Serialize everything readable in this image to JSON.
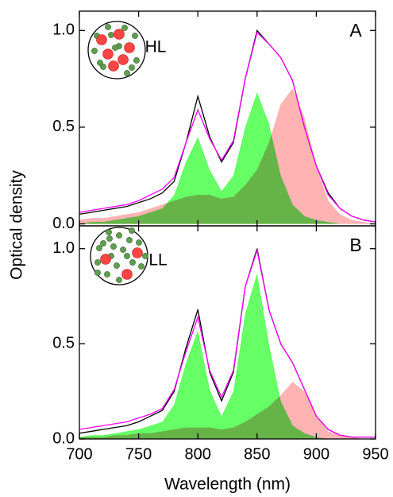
{
  "chart_data": [
    {
      "type": "line",
      "label": "A",
      "inset_label": "HL",
      "ylabel": "Optical density",
      "x": [
        700,
        710,
        720,
        730,
        740,
        750,
        760,
        770,
        780,
        790,
        800,
        810,
        820,
        830,
        840,
        850,
        860,
        870,
        880,
        890,
        900,
        910,
        920,
        930,
        940,
        950
      ],
      "xlim": [
        700,
        950
      ],
      "xticks": [
        700,
        750,
        800,
        850,
        900,
        950
      ],
      "ylim": [
        -0.01,
        1.1
      ],
      "yticks": [
        {
          "value": 0,
          "label": "0.0"
        },
        0.5,
        {
          "value": 1,
          "label": "1.0"
        }
      ],
      "series": [
        {
          "color": "#66ff66",
          "fill": true,
          "values": [
            0,
            0.01,
            0.01,
            0.02,
            0.03,
            0.04,
            0.06,
            0.08,
            0.15,
            0.32,
            0.45,
            0.28,
            0.17,
            0.25,
            0.5,
            0.68,
            0.52,
            0.25,
            0.1,
            0.04,
            0.02,
            0.01,
            0,
            0,
            0,
            0
          ]
        },
        {
          "color": "#ffb3b3",
          "fill": true,
          "values": [
            0.02,
            0.03,
            0.03,
            0.04,
            0.05,
            0.06,
            0.08,
            0.1,
            0.12,
            0.14,
            0.15,
            0.15,
            0.13,
            0.14,
            0.2,
            0.28,
            0.42,
            0.62,
            0.7,
            0.55,
            0.3,
            0.12,
            0.05,
            0.02,
            0.01,
            0
          ]
        },
        {
          "color": "#000000",
          "values": [
            0.05,
            0.06,
            0.07,
            0.08,
            0.09,
            0.11,
            0.13,
            0.16,
            0.22,
            0.42,
            0.66,
            0.45,
            0.32,
            0.42,
            0.75,
            1.0,
            0.93,
            0.86,
            0.74,
            0.5,
            0.3,
            0.16,
            0.08,
            0.04,
            0.02,
            0.01
          ]
        },
        {
          "color": "#ff00ff",
          "values": [
            0.06,
            0.07,
            0.08,
            0.09,
            0.1,
            0.12,
            0.15,
            0.18,
            0.24,
            0.42,
            0.59,
            0.44,
            0.33,
            0.43,
            0.75,
            0.99,
            0.93,
            0.86,
            0.74,
            0.5,
            0.3,
            0.15,
            0.08,
            0.04,
            0.02,
            0.01
          ]
        }
      ]
    },
    {
      "type": "line",
      "label": "B",
      "inset_label": "LL",
      "xlabel": "Wavelength (nm)",
      "x": [
        700,
        710,
        720,
        730,
        740,
        750,
        760,
        770,
        780,
        790,
        800,
        810,
        820,
        830,
        840,
        850,
        860,
        870,
        880,
        890,
        900,
        910,
        920,
        930,
        940,
        950
      ],
      "xlim": [
        700,
        950
      ],
      "xticks": [
        700,
        750,
        800,
        850,
        900,
        950
      ],
      "ylim": [
        0,
        1.12
      ],
      "yticks": [
        {
          "value": 0,
          "label": "0.0"
        },
        0.5,
        {
          "value": 1,
          "label": "1.0"
        }
      ],
      "series": [
        {
          "color": "#66ff66",
          "fill": true,
          "values": [
            0.01,
            0.02,
            0.02,
            0.03,
            0.04,
            0.05,
            0.07,
            0.09,
            0.18,
            0.4,
            0.57,
            0.26,
            0.12,
            0.25,
            0.66,
            0.87,
            0.5,
            0.2,
            0.07,
            0.03,
            0.01,
            0,
            0,
            0,
            0,
            0
          ]
        },
        {
          "color": "#ffb3b3",
          "fill": true,
          "values": [
            0.01,
            0.01,
            0.01,
            0.02,
            0.02,
            0.03,
            0.03,
            0.04,
            0.05,
            0.06,
            0.06,
            0.06,
            0.05,
            0.06,
            0.09,
            0.13,
            0.17,
            0.23,
            0.3,
            0.25,
            0.12,
            0.04,
            0.02,
            0.01,
            0,
            0
          ]
        },
        {
          "color": "#000000",
          "values": [
            0.03,
            0.04,
            0.05,
            0.06,
            0.07,
            0.09,
            0.12,
            0.15,
            0.25,
            0.48,
            0.68,
            0.35,
            0.2,
            0.35,
            0.8,
            1.0,
            0.68,
            0.5,
            0.4,
            0.26,
            0.12,
            0.05,
            0.02,
            0.01,
            0.01,
            0.01
          ]
        },
        {
          "color": "#ff00ff",
          "values": [
            0.05,
            0.06,
            0.07,
            0.08,
            0.09,
            0.11,
            0.13,
            0.16,
            0.26,
            0.46,
            0.64,
            0.36,
            0.22,
            0.36,
            0.8,
            0.99,
            0.68,
            0.5,
            0.4,
            0.26,
            0.12,
            0.05,
            0.02,
            0.01,
            0.01,
            0.01
          ]
        }
      ]
    }
  ]
}
